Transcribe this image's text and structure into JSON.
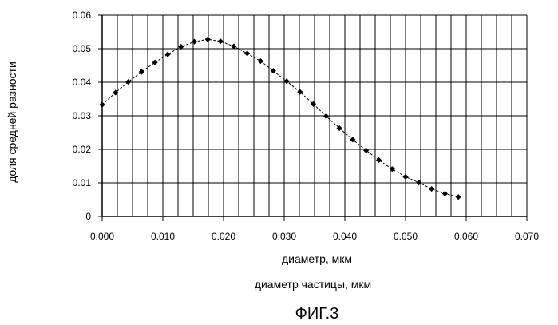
{
  "chart_data": {
    "type": "line",
    "title": "",
    "xlabel": "диаметр, мкм",
    "ylabel": "доля средней разности",
    "xlim": [
      0,
      0.07
    ],
    "ylim": [
      0,
      0.06
    ],
    "x_ticks": [
      "0.000",
      "0.010",
      "0.020",
      "0.030",
      "0.040",
      "0.050",
      "0.060",
      "0.070"
    ],
    "y_ticks": [
      "0",
      "0.01",
      "0.02",
      "0.03",
      "0.04",
      "0.05",
      "0.06"
    ],
    "grid": true,
    "marker": "diamond",
    "line_style": "dashed",
    "series": [
      {
        "x": [
          0.0,
          0.0022,
          0.0043,
          0.0065,
          0.0087,
          0.0108,
          0.013,
          0.0152,
          0.0174,
          0.0195,
          0.0217,
          0.0239,
          0.0261,
          0.0282,
          0.0304,
          0.0326,
          0.0348,
          0.0369,
          0.0391,
          0.0413,
          0.0435,
          0.0456,
          0.0478,
          0.05,
          0.0522,
          0.0543,
          0.0565,
          0.0587
        ],
        "values": [
          0.0333,
          0.0369,
          0.0401,
          0.0431,
          0.0459,
          0.0483,
          0.0506,
          0.0521,
          0.0528,
          0.0522,
          0.0507,
          0.0486,
          0.0463,
          0.0434,
          0.0403,
          0.0371,
          0.0335,
          0.0299,
          0.0263,
          0.0229,
          0.0197,
          0.0168,
          0.0141,
          0.0118,
          0.0101,
          0.0082,
          0.0068,
          0.0058
        ]
      }
    ]
  },
  "caption": {
    "subtitle": "диаметр частицы, мкм",
    "figure": "ФИГ.3"
  },
  "colors": {
    "ink": "#000000",
    "background": "#ffffff"
  }
}
